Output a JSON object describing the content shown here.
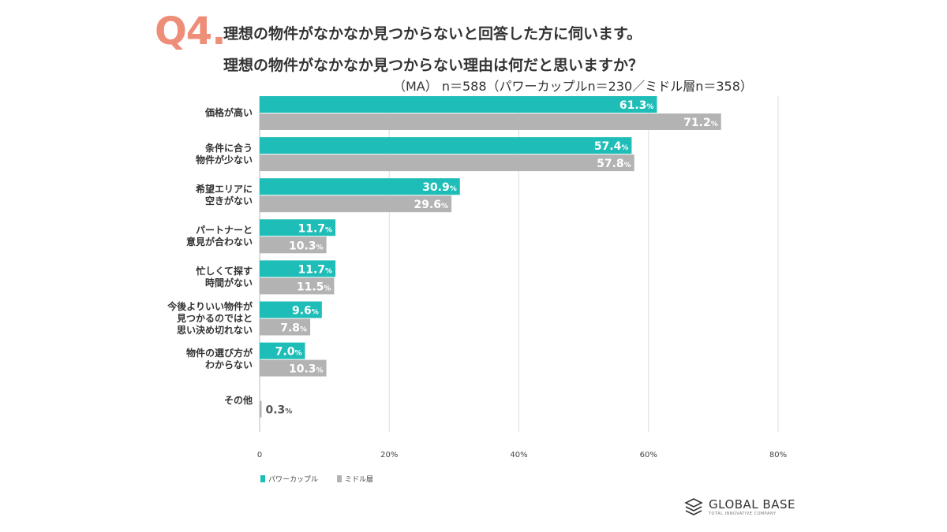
{
  "header": {
    "q_number": "Q4.",
    "title_line1": "理想の物件がなかなか見つからないと回答した方に伺います。",
    "title_line2": "理想の物件がなかなか見つからない理由は何だと思いますか？",
    "subtitle": "（MA） n＝588（パワーカップルn＝230／ミドル層n＝358）"
  },
  "chart_data": {
    "type": "bar",
    "orientation": "horizontal",
    "categories": [
      [
        "価格が高い"
      ],
      [
        "条件に合う",
        "物件が少ない"
      ],
      [
        "希望エリアに",
        "空きがない"
      ],
      [
        "パートナーと",
        "意見が合わない"
      ],
      [
        "忙しくて探す",
        "時間がない"
      ],
      [
        "今後よりいい物件が",
        "見つかるのではと",
        "思い決め切れない"
      ],
      [
        "物件の選び方が",
        "わからない"
      ],
      [
        "その他"
      ]
    ],
    "series": [
      {
        "name": "パワーカップル",
        "color": "#1ebdb7",
        "values": [
          61.3,
          57.4,
          30.9,
          11.7,
          11.7,
          9.6,
          7.0,
          null
        ],
        "labels": [
          "61.3%",
          "57.4%",
          "30.9%",
          "11.7%",
          "11.7%",
          "9.6%",
          "7.0%",
          ""
        ]
      },
      {
        "name": "ミドル層",
        "color": "#b3b3b3",
        "values": [
          71.2,
          57.8,
          29.6,
          10.3,
          11.5,
          7.8,
          10.3,
          0.3
        ],
        "labels": [
          "71.2%",
          "57.8%",
          "29.6%",
          "10.3%",
          "11.5%",
          "7.8%",
          "10.3%",
          "0.3%"
        ]
      }
    ],
    "xlim": [
      0,
      80
    ],
    "xticks": [
      "0",
      "20%",
      "40%",
      "60%",
      "80%"
    ],
    "grid": true,
    "legend_position": "bottom-left"
  },
  "logo": {
    "name": "GLOBAL BASE",
    "tagline": "TOTAL INNOVATIVE COMPANY"
  }
}
